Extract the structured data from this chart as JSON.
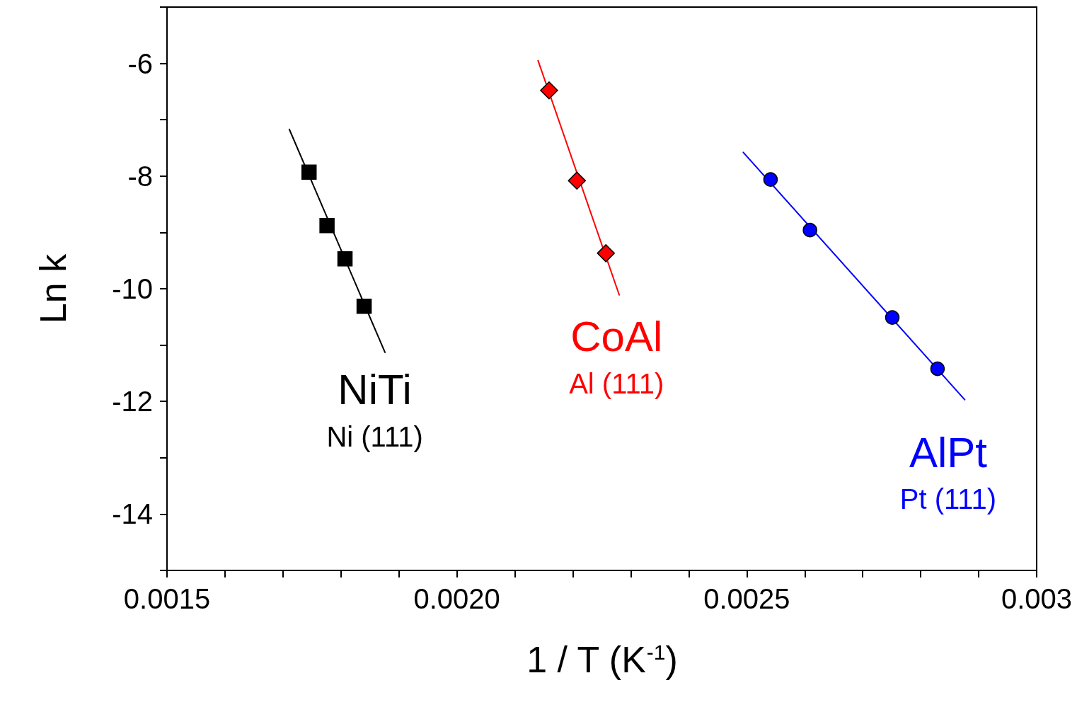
{
  "chart_data": {
    "type": "scatter",
    "xlabel": "1 / T (K$^{-1}$)",
    "ylabel": "Ln k",
    "xlim": [
      0.0015,
      0.003
    ],
    "ylim": [
      -15,
      -5
    ],
    "xticks": [
      {
        "value": 0.0015,
        "label": "0.0015"
      },
      {
        "value": 0.0016,
        "label": null
      },
      {
        "value": 0.0017,
        "label": null
      },
      {
        "value": 0.0018,
        "label": null
      },
      {
        "value": 0.0019,
        "label": null
      },
      {
        "value": 0.002,
        "label": "0.0020"
      },
      {
        "value": 0.0021,
        "label": null
      },
      {
        "value": 0.0022,
        "label": null
      },
      {
        "value": 0.0023,
        "label": null
      },
      {
        "value": 0.0024,
        "label": null
      },
      {
        "value": 0.0025,
        "label": "0.0025"
      },
      {
        "value": 0.0026,
        "label": null
      },
      {
        "value": 0.0027,
        "label": null
      },
      {
        "value": 0.0028,
        "label": null
      },
      {
        "value": 0.0029,
        "label": null
      },
      {
        "value": 0.003,
        "label": "0.003"
      }
    ],
    "yticks": [
      {
        "value": -15,
        "label": null
      },
      -14,
      {
        "value": -13,
        "label": null
      },
      -12,
      {
        "value": -11,
        "label": null
      },
      -10,
      {
        "value": -9,
        "label": null
      },
      -8,
      {
        "value": -7,
        "label": null
      },
      -6,
      {
        "value": -5,
        "label": null
      }
    ],
    "grid": false,
    "series": [
      {
        "name": "NiTi",
        "marker": "square",
        "color": "#000000",
        "x": [
          0.001745,
          0.001776,
          0.001807,
          0.00184
        ],
        "values": [
          -7.93,
          -8.88,
          -9.47,
          -10.31
        ]
      },
      {
        "name": "CoAl",
        "marker": "diamond",
        "color": "#ff0000",
        "x": [
          0.002159,
          0.002207,
          0.002257
        ],
        "values": [
          -6.48,
          -8.08,
          -9.37
        ]
      },
      {
        "name": "AlPt",
        "marker": "circle",
        "color": "#0000ff",
        "x": [
          0.002541,
          0.002609,
          0.002751,
          0.002829
        ],
        "values": [
          -8.06,
          -8.96,
          -10.51,
          -11.42
        ]
      },
      {
        "type": "line",
        "marker": "none",
        "color": "#000000",
        "x": [
          0.001711,
          0.001876
        ],
        "values": [
          -7.17,
          -11.13
        ]
      },
      {
        "type": "line",
        "marker": "none",
        "color": "#ff0000",
        "x": [
          0.00214,
          0.00228
        ],
        "values": [
          -5.95,
          -10.11
        ]
      },
      {
        "type": "line",
        "marker": "none",
        "color": "#0000ff",
        "x": [
          0.002494,
          0.002876
        ],
        "values": [
          -7.58,
          -11.97
        ]
      }
    ],
    "annotations": [
      "Ni (111)",
      "Al (111)",
      "Pt (111)"
    ]
  }
}
